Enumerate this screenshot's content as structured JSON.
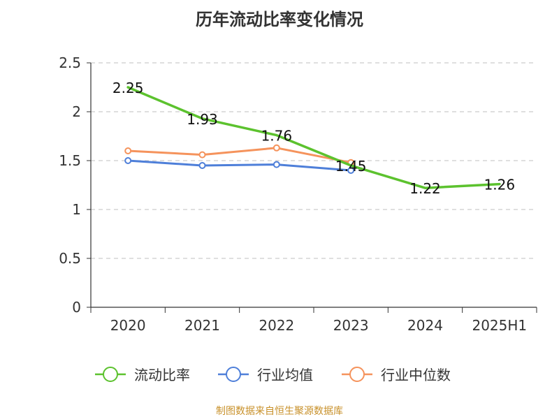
{
  "chart_data": {
    "type": "line",
    "title": "历年流动比率变化情况",
    "categories": [
      "2020",
      "2021",
      "2022",
      "2023",
      "2024",
      "2025H1"
    ],
    "yticks": [
      "0",
      "0.5",
      "1",
      "1.5",
      "2",
      "2.5"
    ],
    "ylim": [
      0,
      2.5
    ],
    "grid": "horizontal dashed",
    "legend_position": "bottom",
    "series": [
      {
        "name": "流动比率",
        "color": "#5cc22e",
        "values": [
          2.25,
          1.93,
          1.76,
          1.45,
          1.22,
          1.26
        ],
        "labels": [
          "2.25",
          "1.93",
          "1.76",
          "1.45",
          "1.22",
          "1.26"
        ],
        "markers": false
      },
      {
        "name": "行业均值",
        "color": "#4e7fd9",
        "values": [
          1.5,
          1.45,
          1.46,
          1.4,
          null,
          null
        ],
        "markers": true
      },
      {
        "name": "行业中位数",
        "color": "#f5935c",
        "values": [
          1.6,
          1.56,
          1.63,
          1.48,
          null,
          null
        ],
        "markers": true
      }
    ]
  },
  "source": "制图数据来自恒生聚源数据库"
}
